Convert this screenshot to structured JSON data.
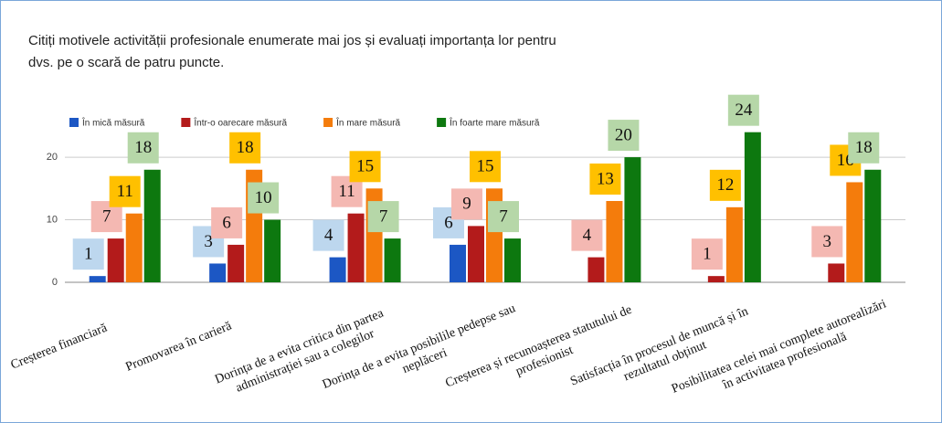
{
  "chart_data": {
    "type": "bar",
    "title": "Citiți motivele activității profesionale enumerate mai jos și evaluați importanța lor pentru dvs. pe o scară de patru puncte.",
    "categories": [
      "Creșterea financiară",
      "Promovarea în carieră",
      "Dorința de a evita critica din partea administrației sau a colegilor",
      "Dorința de a evita posibilile pedepse sau neplăceri",
      "Creșterea și recunoașterea statutului de profesionist",
      "Satisfacția în procesul de muncă și în rezultatul obținut",
      "Posibilitatea celei mai complete autorealizări în activitatea profesională"
    ],
    "series": [
      {
        "name": "În mică măsură",
        "color": "#1c57c4",
        "label_color": "#bdd7ee",
        "values": [
          1,
          3,
          4,
          6,
          null,
          null,
          null
        ]
      },
      {
        "name": "Într-o oarecare măsură",
        "color": "#b31b1b",
        "label_color": "#f4b8b2",
        "values": [
          7,
          6,
          11,
          9,
          4,
          1,
          3
        ]
      },
      {
        "name": "În mare măsură",
        "color": "#f47c0c",
        "label_color": "#ffc000",
        "values": [
          11,
          18,
          15,
          15,
          13,
          12,
          16
        ]
      },
      {
        "name": "În foarte mare măsură",
        "color": "#0d780f",
        "label_color": "#b6d7a8",
        "values": [
          18,
          10,
          7,
          7,
          20,
          24,
          18
        ]
      }
    ],
    "ylim": [
      0,
      26
    ],
    "yticks": [
      0,
      10,
      20
    ],
    "grid": true,
    "legend": "top"
  }
}
